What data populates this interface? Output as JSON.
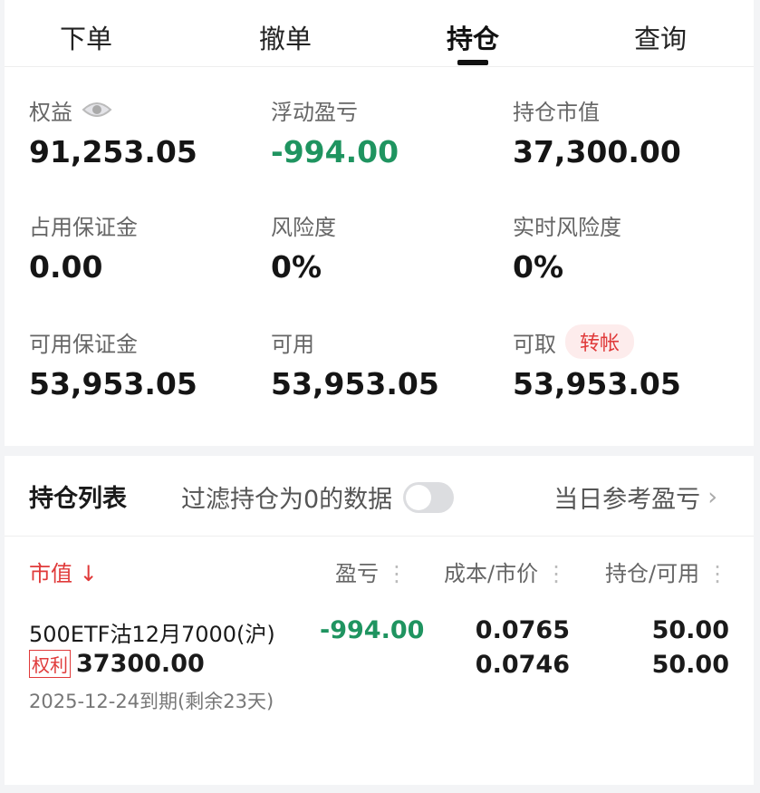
{
  "tabs": [
    {
      "label": "下单"
    },
    {
      "label": "撤单"
    },
    {
      "label": "持仓",
      "active": true
    },
    {
      "label": "查询"
    }
  ],
  "stats": {
    "equity": {
      "label": "权益",
      "value": "91,253.05"
    },
    "floating_pnl": {
      "label": "浮动盈亏",
      "value": "-994.00"
    },
    "position_value": {
      "label": "持仓市值",
      "value": "37,300.00"
    },
    "margin_used": {
      "label": "占用保证金",
      "value": "0.00"
    },
    "risk": {
      "label": "风险度",
      "value": "0%"
    },
    "realtime_risk": {
      "label": "实时风险度",
      "value": "0%"
    },
    "margin_available": {
      "label": "可用保证金",
      "value": "53,953.05"
    },
    "available": {
      "label": "可用",
      "value": "53,953.05"
    },
    "withdrawable": {
      "label": "可取",
      "value": "53,953.05",
      "transfer_label": "转帐"
    }
  },
  "positions": {
    "title": "持仓列表",
    "filter_label": "过滤持仓为0的数据",
    "filter_on": false,
    "daily_ref_label": "当日参考盈亏",
    "columns": {
      "market_value": "市值 ↓",
      "pnl": "盈亏",
      "cost_price": "成本/市价",
      "hold_avail": "持仓/可用"
    },
    "rows": [
      {
        "name": "500ETF沽12月7000(沪)",
        "tag": "权利",
        "market_value": "37300.00",
        "expiry": "2025-12-24到期(剩余23天)",
        "pnl": "-994.00",
        "cost": "0.0765",
        "price": "0.0746",
        "hold": "50.00",
        "avail": "50.00"
      }
    ]
  },
  "colors": {
    "green": "#1f9460",
    "red": "#e03a3a"
  }
}
